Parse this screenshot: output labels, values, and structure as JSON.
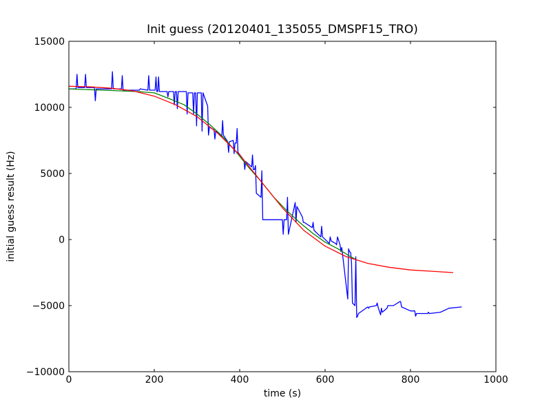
{
  "chart_data": {
    "type": "line",
    "title": "Init guess (20120401_135055_DMSPF15_TRO)",
    "xlabel": "time (s)",
    "ylabel": "initial guess result (Hz)",
    "xlim": [
      0,
      1000
    ],
    "ylim": [
      -10000,
      15000
    ],
    "xticks": [
      0,
      200,
      400,
      600,
      800,
      1000
    ],
    "yticks": [
      -10000,
      -5000,
      0,
      5000,
      10000,
      15000
    ],
    "xtick_labels": [
      "0",
      "200",
      "400",
      "600",
      "800",
      "1000"
    ],
    "ytick_labels": [
      "−10000",
      "−5000",
      "0",
      "5000",
      "10000",
      "15000"
    ],
    "grid": false,
    "legend": "none",
    "series": [
      {
        "color": "#0000ff",
        "x": [
          0,
          17,
          19,
          21,
          37,
          39,
          41,
          60,
          62,
          64,
          100,
          102,
          104,
          123,
          125,
          127,
          165,
          167,
          185,
          187,
          189,
          202,
          204,
          206,
          208,
          210,
          212,
          230,
          232,
          234,
          245,
          247,
          249,
          252,
          254,
          256,
          275,
          277,
          279,
          290,
          292,
          294,
          297,
          299,
          301,
          310,
          312,
          314,
          325,
          327,
          329,
          340,
          342,
          344,
          358,
          360,
          362,
          372,
          374,
          376,
          385,
          387,
          389,
          392,
          394,
          396,
          410,
          412,
          414,
          428,
          430,
          432,
          435,
          437,
          439,
          450,
          452,
          454,
          470,
          485,
          490,
          500,
          502,
          504,
          510,
          512,
          514,
          530,
          532,
          534,
          547,
          549,
          551,
          570,
          572,
          574,
          590,
          592,
          594,
          610,
          612,
          614,
          625,
          627,
          629,
          635,
          637,
          639,
          653,
          655,
          657,
          660,
          662,
          664,
          670,
          672,
          674,
          676,
          678,
          700,
          702,
          704,
          720,
          722,
          724,
          730,
          732,
          734,
          745,
          747,
          760,
          775,
          777,
          779,
          800,
          810,
          812,
          814,
          840,
          842,
          844,
          870,
          890,
          920
        ],
        "y": [
          11400,
          11400,
          12500,
          11500,
          11500,
          12500,
          11500,
          11500,
          10500,
          11400,
          11400,
          12700,
          11400,
          11400,
          12400,
          11300,
          11300,
          11400,
          11300,
          12400,
          11300,
          11300,
          12300,
          11200,
          11200,
          12300,
          11200,
          11200,
          10800,
          11200,
          11200,
          10200,
          11200,
          11200,
          9900,
          11200,
          11200,
          9500,
          11100,
          11100,
          9500,
          11100,
          11100,
          8600,
          11100,
          11100,
          8200,
          11100,
          10100,
          7900,
          8500,
          8300,
          7600,
          8200,
          7800,
          9000,
          7900,
          7400,
          6600,
          7400,
          7500,
          6500,
          7300,
          7300,
          8400,
          6600,
          6000,
          5300,
          5900,
          5500,
          6400,
          5300,
          5300,
          5600,
          3500,
          3200,
          5200,
          1500,
          1500,
          1500,
          1500,
          1500,
          400,
          1500,
          1500,
          3200,
          400,
          2800,
          1300,
          2500,
          1700,
          1300,
          1300,
          900,
          1300,
          700,
          200,
          1000,
          200,
          -300,
          200,
          -100,
          -300,
          -400,
          200,
          -400,
          -900,
          -600,
          -4500,
          -700,
          -900,
          -1000,
          -1800,
          -4800,
          -5000,
          -1300,
          -5900,
          -5800,
          -5600,
          -5100,
          -5200,
          -5100,
          -5000,
          -4800,
          -5100,
          -5700,
          -5200,
          -5500,
          -5200,
          -5000,
          -5000,
          -4700,
          -4700,
          -5100,
          -5400,
          -5400,
          -5800,
          -5600,
          -5600,
          -5500,
          -5600,
          -5500,
          -5200,
          -5100
        ]
      },
      {
        "color": "#008000",
        "x": [
          0,
          40,
          80,
          120,
          160,
          200,
          240,
          270,
          300,
          330,
          360,
          390,
          420,
          450,
          480,
          510,
          540,
          570,
          600,
          630,
          660,
          672
        ],
        "y": [
          11400,
          11350,
          11300,
          11250,
          11200,
          11100,
          10600,
          10200,
          9500,
          8700,
          7800,
          6700,
          5500,
          4400,
          3200,
          2200,
          1300,
          500,
          -200,
          -700,
          -1300,
          -1500
        ]
      },
      {
        "color": "#ff0000",
        "x": [
          0,
          50,
          100,
          150,
          200,
          250,
          300,
          350,
          400,
          450,
          500,
          550,
          600,
          650,
          700,
          750,
          800,
          850,
          900
        ],
        "y": [
          11600,
          11550,
          11450,
          11250,
          10850,
          10200,
          9300,
          8000,
          6400,
          4400,
          2400,
          700,
          -500,
          -1300,
          -1800,
          -2100,
          -2300,
          -2400,
          -2500
        ]
      }
    ]
  }
}
